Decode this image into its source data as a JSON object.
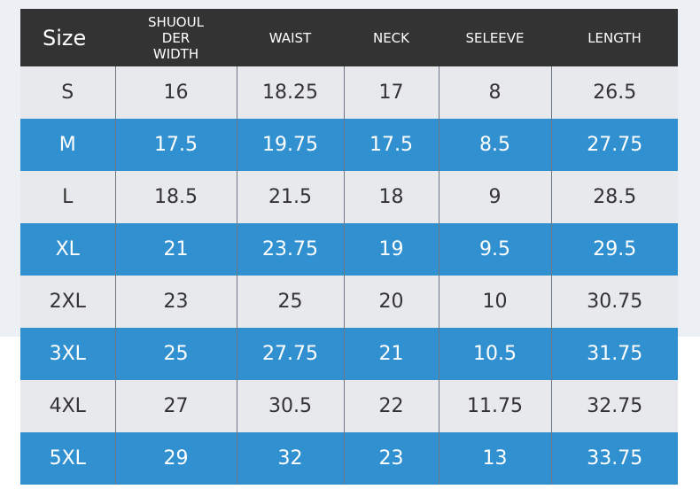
{
  "table": {
    "header": [
      "Size",
      "SHUOUL DER WIDTH",
      "WAIST",
      "NECK",
      "SELEEVE",
      "LENGTH"
    ],
    "rows": [
      [
        "S",
        "16",
        "18.25",
        "17",
        "8",
        "26.5"
      ],
      [
        "M",
        "17.5",
        "19.75",
        "17.5",
        "8.5",
        "27.75"
      ],
      [
        "L",
        "18.5",
        "21.5",
        "18",
        "9",
        "28.5"
      ],
      [
        "XL",
        "21",
        "23.75",
        "19",
        "9.5",
        "29.5"
      ],
      [
        "2XL",
        "23",
        "25",
        "20",
        "10",
        "30.75"
      ],
      [
        "3XL",
        "25",
        "27.75",
        "21",
        "10.5",
        "31.75"
      ],
      [
        "4XL",
        "27",
        "30.5",
        "22",
        "11.75",
        "32.75"
      ],
      [
        "5XL",
        "29",
        "32",
        "23",
        "13",
        "33.75"
      ]
    ]
  }
}
